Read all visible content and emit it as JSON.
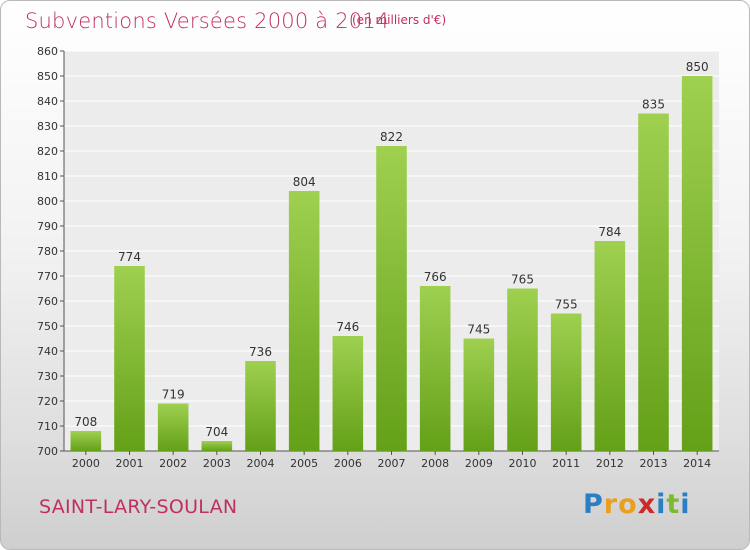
{
  "chart_data": {
    "type": "bar",
    "title": "Subventions Versées 2000 à 2014",
    "subtitle": "(en milliers d'€)",
    "categories": [
      "2000",
      "2001",
      "2002",
      "2003",
      "2004",
      "2005",
      "2006",
      "2007",
      "2008",
      "2009",
      "2010",
      "2011",
      "2012",
      "2013",
      "2014"
    ],
    "values": [
      708,
      774,
      719,
      704,
      736,
      804,
      746,
      822,
      766,
      745,
      765,
      755,
      784,
      835,
      850
    ],
    "ylim": [
      700,
      860
    ],
    "yticks": [
      700,
      710,
      720,
      730,
      740,
      750,
      760,
      770,
      780,
      790,
      800,
      810,
      820,
      830,
      840,
      850,
      860
    ],
    "grid": true,
    "bar_color": "#7fba2e"
  },
  "footer": {
    "commune": "SAINT-LARY-SOULAN",
    "logo_letters": [
      {
        "ch": "P",
        "color": "#2a7fc4"
      },
      {
        "ch": "r",
        "color": "#e8a020"
      },
      {
        "ch": "o",
        "color": "#e8a020"
      },
      {
        "ch": "x",
        "color": "#cc2a2a"
      },
      {
        "ch": "i",
        "color": "#2a7fc4"
      },
      {
        "ch": "t",
        "color": "#7fba2e"
      },
      {
        "ch": "i",
        "color": "#2a7fc4"
      }
    ]
  }
}
